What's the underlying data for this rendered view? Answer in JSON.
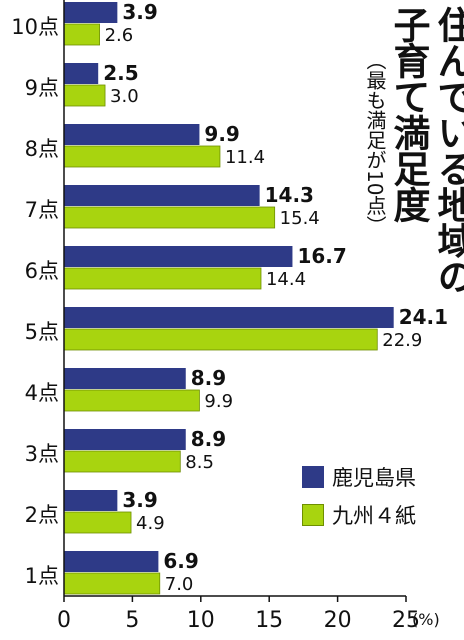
{
  "title_lines": [
    "住んでいる地域の",
    "子育て満足度"
  ],
  "subtitle": "（最も満足が10点）",
  "unit": "(%)",
  "colors": {
    "kagoshima": "#2e3a87",
    "kyushu": "#a8d40f"
  },
  "chart_data": {
    "type": "bar",
    "orientation": "horizontal",
    "categories": [
      "10点",
      "9点",
      "8点",
      "7点",
      "6点",
      "5点",
      "4点",
      "3点",
      "2点",
      "1点"
    ],
    "series": [
      {
        "name": "鹿児島県",
        "values": [
          3.9,
          2.5,
          9.9,
          14.3,
          16.7,
          24.1,
          8.9,
          8.9,
          3.9,
          6.9
        ]
      },
      {
        "name": "九州４紙",
        "values": [
          2.6,
          3.0,
          11.4,
          15.4,
          14.4,
          22.9,
          9.9,
          8.5,
          4.9,
          7.0
        ]
      }
    ],
    "value_labels": [
      [
        "3.9",
        "2.5",
        "9.9",
        "14.3",
        "16.7",
        "24.1",
        "8.9",
        "8.9",
        "3.9",
        "6.9"
      ],
      [
        "2.6",
        "3.0",
        "11.4",
        "15.4",
        "14.4",
        "22.9",
        "9.9",
        "8.5",
        "4.9",
        "7.0"
      ]
    ],
    "xlim": [
      0,
      25
    ],
    "xticks": [
      0,
      5,
      10,
      15,
      20,
      25
    ],
    "xtick_labels": [
      "0",
      "5",
      "10",
      "15",
      "20",
      "25"
    ],
    "grid": false,
    "legend_position": "bottom-right"
  }
}
